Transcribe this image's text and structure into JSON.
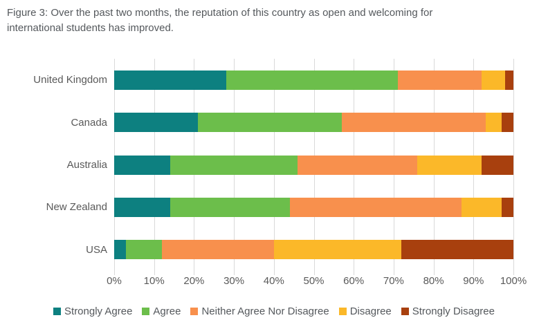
{
  "figure": {
    "title": "Figure 3: Over the past two months, the reputation of this country as open and welcoming for international students has improved."
  },
  "chart_data": {
    "type": "bar",
    "orientation": "horizontal",
    "stacked": true,
    "title": "Figure 3: Over the past two months, the reputation of this country as open and welcoming for international students has improved.",
    "categories": [
      "United Kingdom",
      "Canada",
      "Australia",
      "New Zealand",
      "USA"
    ],
    "series": [
      {
        "name": "Strongly Agree",
        "color": "#0D8080",
        "values": [
          28,
          21,
          14,
          14,
          3
        ]
      },
      {
        "name": "Agree",
        "color": "#6CBE4B",
        "values": [
          43,
          36,
          32,
          30,
          9
        ]
      },
      {
        "name": "Neither Agree Nor Disagree",
        "color": "#F8904D",
        "values": [
          21,
          36,
          30,
          43,
          28
        ]
      },
      {
        "name": "Disagree",
        "color": "#FBB829",
        "values": [
          6,
          4,
          16,
          10,
          32
        ]
      },
      {
        "name": "Strongly Disagree",
        "color": "#A8400E",
        "values": [
          2,
          3,
          8,
          3,
          28
        ]
      }
    ],
    "xlabel": "",
    "ylabel": "",
    "xlim": [
      0,
      100
    ],
    "x_ticks": [
      "0%",
      "10%",
      "20%",
      "30%",
      "40%",
      "50%",
      "60%",
      "70%",
      "80%",
      "90%",
      "100%"
    ],
    "grid": true,
    "gridline_color": "#D9D9D9",
    "legend_position": "bottom",
    "text_color": "#595959"
  }
}
